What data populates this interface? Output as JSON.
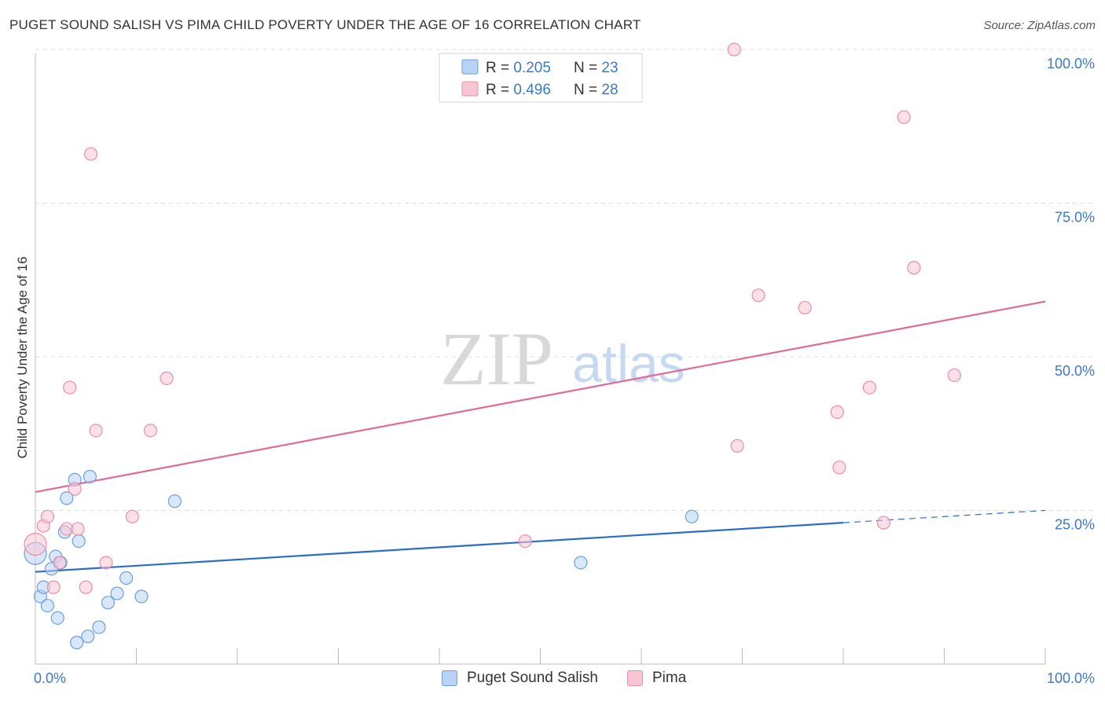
{
  "title": "PUGET SOUND SALISH VS PIMA CHILD POVERTY UNDER THE AGE OF 16 CORRELATION CHART",
  "source": "Source: ZipAtlas.com",
  "watermark": {
    "zip": "ZIP",
    "atlas": "atlas"
  },
  "colors": {
    "blue_fill": "#b8d3f5",
    "blue_stroke": "#6c9fdc",
    "blue_line": "#2a6dc8",
    "pink_fill": "#f9c4d3",
    "pink_stroke": "#e590ab",
    "pink_line": "#e26a96",
    "value_text": "#3c78c8",
    "grid": "#dddddd"
  },
  "chart_data": {
    "type": "scatter",
    "xlabel": "",
    "ylabel": "Child Poverty Under the Age of 16",
    "xlim": [
      0,
      100
    ],
    "ylim": [
      0,
      100
    ],
    "x_tick_labels": [
      {
        "value": 0,
        "label": "0.0%"
      },
      {
        "value": 100,
        "label": "100.0%"
      }
    ],
    "y_tick_labels": [
      {
        "value": 25,
        "label": "25.0%"
      },
      {
        "value": 50,
        "label": "50.0%"
      },
      {
        "value": 75,
        "label": "75.0%"
      },
      {
        "value": 100,
        "label": "100.0%"
      }
    ],
    "legend_stats": [
      {
        "r_label": "R = ",
        "r_value": "0.205",
        "n_label": "N = ",
        "n_value": "23"
      },
      {
        "r_label": "R = ",
        "r_value": "0.496",
        "n_label": "N = ",
        "n_value": "28"
      }
    ],
    "series": [
      {
        "name": "Puget Sound Salish",
        "color": "blue",
        "points": [
          [
            0,
            18
          ],
          [
            0.5,
            11
          ],
          [
            0.8,
            12.5
          ],
          [
            1.2,
            9.5
          ],
          [
            1.6,
            15.5
          ],
          [
            2,
            17.5
          ],
          [
            2.2,
            7.5
          ],
          [
            2.5,
            16.5
          ],
          [
            2.9,
            21.5
          ],
          [
            3.1,
            27
          ],
          [
            3.9,
            30
          ],
          [
            4.3,
            20
          ],
          [
            4.1,
            3.5
          ],
          [
            5.2,
            4.5
          ],
          [
            5.4,
            30.5
          ],
          [
            6.3,
            6
          ],
          [
            7.2,
            10
          ],
          [
            8.1,
            11.5
          ],
          [
            9.0,
            14
          ],
          [
            10.5,
            11
          ],
          [
            13.8,
            26.5
          ],
          [
            54,
            16.5
          ],
          [
            65,
            24
          ]
        ],
        "trend": {
          "x0": 0,
          "y0": 15,
          "x1": 80,
          "y1": 23,
          "dash_x1": 100,
          "dash_y1": 25
        }
      },
      {
        "name": "Pima",
        "color": "pink",
        "points": [
          [
            0,
            19.5
          ],
          [
            0.8,
            22.5
          ],
          [
            1.2,
            24
          ],
          [
            1.8,
            12.5
          ],
          [
            2.4,
            16.5
          ],
          [
            3.1,
            22
          ],
          [
            3.4,
            45
          ],
          [
            3.9,
            28.5
          ],
          [
            4.2,
            22
          ],
          [
            5.0,
            12.5
          ],
          [
            5.5,
            83
          ],
          [
            6.0,
            38
          ],
          [
            7.0,
            16.5
          ],
          [
            9.6,
            24
          ],
          [
            11.4,
            38
          ],
          [
            13.0,
            46.5
          ],
          [
            48.5,
            20
          ],
          [
            69.2,
            100
          ],
          [
            69.5,
            35.5
          ],
          [
            71.6,
            60
          ],
          [
            76.2,
            58
          ],
          [
            79.4,
            41
          ],
          [
            79.6,
            32
          ],
          [
            82.6,
            45
          ],
          [
            84,
            23
          ],
          [
            86,
            89
          ],
          [
            87,
            64.5
          ],
          [
            91,
            47
          ]
        ],
        "trend": {
          "x0": 0,
          "y0": 28,
          "x1": 100,
          "y1": 59
        }
      }
    ]
  }
}
